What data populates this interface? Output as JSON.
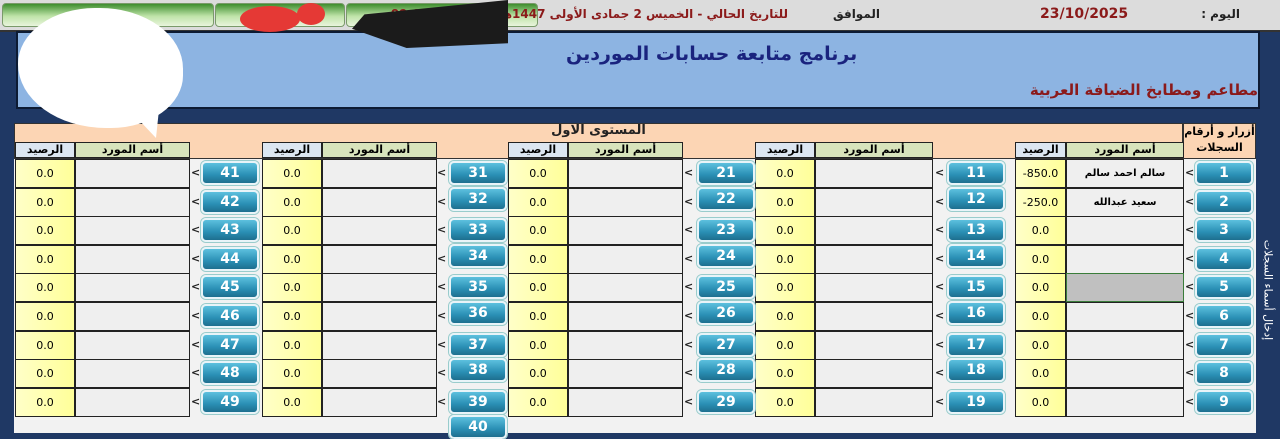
{
  "topbar": {
    "day_label": "اليوم :",
    "date": "23/10/2025",
    "corresponding_label": "الموافق",
    "hijri_datetime": "للتاريخ الحالي - الخميس 2 جمادى الأولى 1447هـ الساعة 09:05:41 ص"
  },
  "banner": {
    "title": "برنامج متابعة حسابات الموردين",
    "subtitle": "مطاعم ومطابخ الضيافة العربية"
  },
  "level_title": "المستوى الاول",
  "records_label": "أزرار و أرقام السجلات",
  "vertical_label": "إدخال أسماء السجلات",
  "headers": {
    "name": "أسم المورد",
    "balance": "الرصيد"
  },
  "arrow_symbol": "<",
  "colors": {
    "frame": "#1f3864",
    "banner": "#8db4e2",
    "peach": "#fcd5b4",
    "button": "#2a8fb4",
    "balance_cell": "#ffff99",
    "title": "#1a237e",
    "accent_red": "#8b1a1a"
  },
  "groups": [
    {
      "records": [
        {
          "num": "1",
          "name": "سالم احمد سالم",
          "balance": "-850.0"
        },
        {
          "num": "2",
          "name": "سعيد عبدالله",
          "balance": "-250.0"
        },
        {
          "num": "3",
          "name": "",
          "balance": "0.0"
        },
        {
          "num": "4",
          "name": "",
          "balance": "0.0"
        },
        {
          "num": "5",
          "name": "",
          "balance": "0.0"
        },
        {
          "num": "6",
          "name": "",
          "balance": "0.0"
        },
        {
          "num": "7",
          "name": "",
          "balance": "0.0"
        },
        {
          "num": "8",
          "name": "",
          "balance": "0.0"
        },
        {
          "num": "9",
          "name": "",
          "balance": "0.0"
        }
      ]
    },
    {
      "records": [
        {
          "num": "11",
          "name": "",
          "balance": "0.0"
        },
        {
          "num": "12",
          "name": "",
          "balance": "0.0"
        },
        {
          "num": "13",
          "name": "",
          "balance": "0.0"
        },
        {
          "num": "14",
          "name": "",
          "balance": "0.0"
        },
        {
          "num": "15",
          "name": "",
          "balance": "0.0"
        },
        {
          "num": "16",
          "name": "",
          "balance": "0.0"
        },
        {
          "num": "17",
          "name": "",
          "balance": "0.0"
        },
        {
          "num": "18",
          "name": "",
          "balance": "0.0"
        },
        {
          "num": "19",
          "name": "",
          "balance": "0.0"
        }
      ]
    },
    {
      "records": [
        {
          "num": "21",
          "name": "",
          "balance": "0.0"
        },
        {
          "num": "22",
          "name": "",
          "balance": "0.0"
        },
        {
          "num": "23",
          "name": "",
          "balance": "0.0"
        },
        {
          "num": "24",
          "name": "",
          "balance": "0.0"
        },
        {
          "num": "25",
          "name": "",
          "balance": "0.0"
        },
        {
          "num": "26",
          "name": "",
          "balance": "0.0"
        },
        {
          "num": "27",
          "name": "",
          "balance": "0.0"
        },
        {
          "num": "28",
          "name": "",
          "balance": "0.0"
        },
        {
          "num": "29",
          "name": "",
          "balance": "0.0"
        }
      ]
    },
    {
      "records": [
        {
          "num": "31",
          "name": "",
          "balance": "0.0"
        },
        {
          "num": "32",
          "name": "",
          "balance": "0.0"
        },
        {
          "num": "33",
          "name": "",
          "balance": "0.0"
        },
        {
          "num": "34",
          "name": "",
          "balance": "0.0"
        },
        {
          "num": "35",
          "name": "",
          "balance": "0.0"
        },
        {
          "num": "36",
          "name": "",
          "balance": "0.0"
        },
        {
          "num": "37",
          "name": "",
          "balance": "0.0"
        },
        {
          "num": "38",
          "name": "",
          "balance": "0.0"
        },
        {
          "num": "39",
          "name": "",
          "balance": "0.0"
        },
        {
          "num": "40",
          "name": "",
          "balance": ""
        }
      ]
    },
    {
      "records": [
        {
          "num": "41",
          "name": "",
          "balance": "0.0"
        },
        {
          "num": "42",
          "name": "",
          "balance": "0.0"
        },
        {
          "num": "43",
          "name": "",
          "balance": "0.0"
        },
        {
          "num": "44",
          "name": "",
          "balance": "0.0"
        },
        {
          "num": "45",
          "name": "",
          "balance": "0.0"
        },
        {
          "num": "46",
          "name": "",
          "balance": "0.0"
        },
        {
          "num": "47",
          "name": "",
          "balance": "0.0"
        },
        {
          "num": "48",
          "name": "",
          "balance": "0.0"
        },
        {
          "num": "49",
          "name": "",
          "balance": "0.0"
        }
      ]
    }
  ]
}
